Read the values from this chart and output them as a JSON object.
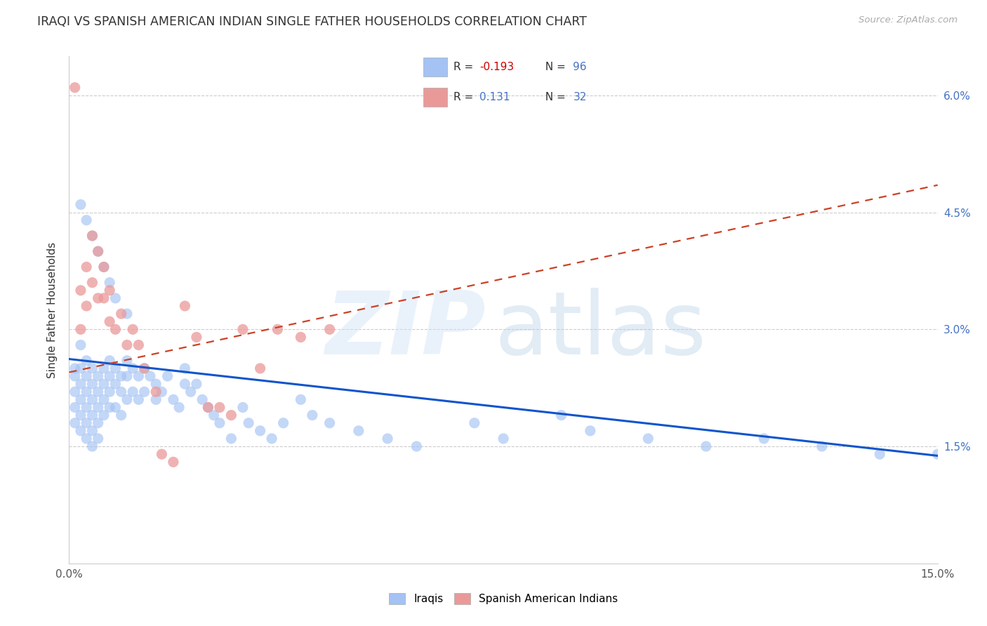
{
  "title": "IRAQI VS SPANISH AMERICAN INDIAN SINGLE FATHER HOUSEHOLDS CORRELATION CHART",
  "source": "Source: ZipAtlas.com",
  "ylabel": "Single Father Households",
  "x_min": 0.0,
  "x_max": 0.15,
  "y_min": 0.0,
  "y_max": 0.065,
  "x_ticks": [
    0.0,
    0.15
  ],
  "x_tick_labels": [
    "0.0%",
    "15.0%"
  ],
  "y_ticks": [
    0.015,
    0.03,
    0.045,
    0.06
  ],
  "y_tick_labels": [
    "1.5%",
    "3.0%",
    "4.5%",
    "6.0%"
  ],
  "iraqis_color": "#a4c2f4",
  "spanish_color": "#ea9999",
  "iraqis_line_color": "#1155cc",
  "spanish_line_color": "#cc4125",
  "grid_color": "#cccccc",
  "background_color": "#ffffff",
  "iraqis_x": [
    0.001,
    0.001,
    0.001,
    0.001,
    0.001,
    0.002,
    0.002,
    0.002,
    0.002,
    0.002,
    0.002,
    0.003,
    0.003,
    0.003,
    0.003,
    0.003,
    0.003,
    0.004,
    0.004,
    0.004,
    0.004,
    0.004,
    0.004,
    0.005,
    0.005,
    0.005,
    0.005,
    0.005,
    0.006,
    0.006,
    0.006,
    0.006,
    0.007,
    0.007,
    0.007,
    0.007,
    0.008,
    0.008,
    0.008,
    0.009,
    0.009,
    0.009,
    0.01,
    0.01,
    0.01,
    0.011,
    0.011,
    0.012,
    0.012,
    0.013,
    0.013,
    0.014,
    0.015,
    0.015,
    0.016,
    0.017,
    0.018,
    0.019,
    0.02,
    0.02,
    0.021,
    0.022,
    0.023,
    0.024,
    0.025,
    0.026,
    0.028,
    0.03,
    0.031,
    0.033,
    0.035,
    0.037,
    0.04,
    0.042,
    0.045,
    0.05,
    0.055,
    0.06,
    0.07,
    0.075,
    0.085,
    0.09,
    0.1,
    0.11,
    0.12,
    0.13,
    0.14,
    0.15,
    0.002,
    0.003,
    0.004,
    0.005,
    0.006,
    0.007,
    0.008,
    0.01
  ],
  "iraqis_y": [
    0.025,
    0.024,
    0.022,
    0.02,
    0.018,
    0.028,
    0.025,
    0.023,
    0.021,
    0.019,
    0.017,
    0.026,
    0.024,
    0.022,
    0.02,
    0.018,
    0.016,
    0.025,
    0.023,
    0.021,
    0.019,
    0.017,
    0.015,
    0.024,
    0.022,
    0.02,
    0.018,
    0.016,
    0.025,
    0.023,
    0.021,
    0.019,
    0.026,
    0.024,
    0.022,
    0.02,
    0.025,
    0.023,
    0.02,
    0.024,
    0.022,
    0.019,
    0.026,
    0.024,
    0.021,
    0.025,
    0.022,
    0.024,
    0.021,
    0.025,
    0.022,
    0.024,
    0.023,
    0.021,
    0.022,
    0.024,
    0.021,
    0.02,
    0.025,
    0.023,
    0.022,
    0.023,
    0.021,
    0.02,
    0.019,
    0.018,
    0.016,
    0.02,
    0.018,
    0.017,
    0.016,
    0.018,
    0.021,
    0.019,
    0.018,
    0.017,
    0.016,
    0.015,
    0.018,
    0.016,
    0.019,
    0.017,
    0.016,
    0.015,
    0.016,
    0.015,
    0.014,
    0.014,
    0.046,
    0.044,
    0.042,
    0.04,
    0.038,
    0.036,
    0.034,
    0.032
  ],
  "spanish_x": [
    0.001,
    0.002,
    0.002,
    0.003,
    0.003,
    0.004,
    0.004,
    0.005,
    0.005,
    0.006,
    0.006,
    0.007,
    0.007,
    0.008,
    0.009,
    0.01,
    0.011,
    0.012,
    0.013,
    0.015,
    0.016,
    0.018,
    0.02,
    0.022,
    0.024,
    0.026,
    0.028,
    0.03,
    0.033,
    0.036,
    0.04,
    0.045
  ],
  "spanish_y": [
    0.061,
    0.035,
    0.03,
    0.038,
    0.033,
    0.042,
    0.036,
    0.04,
    0.034,
    0.038,
    0.034,
    0.035,
    0.031,
    0.03,
    0.032,
    0.028,
    0.03,
    0.028,
    0.025,
    0.022,
    0.014,
    0.013,
    0.033,
    0.029,
    0.02,
    0.02,
    0.019,
    0.03,
    0.025,
    0.03,
    0.029,
    0.03
  ],
  "iraqi_trendline_start_y": 0.0262,
  "iraqi_trendline_end_y": 0.0138,
  "spanish_trendline_start_y": 0.0245,
  "spanish_trendline_end_y": 0.0485
}
